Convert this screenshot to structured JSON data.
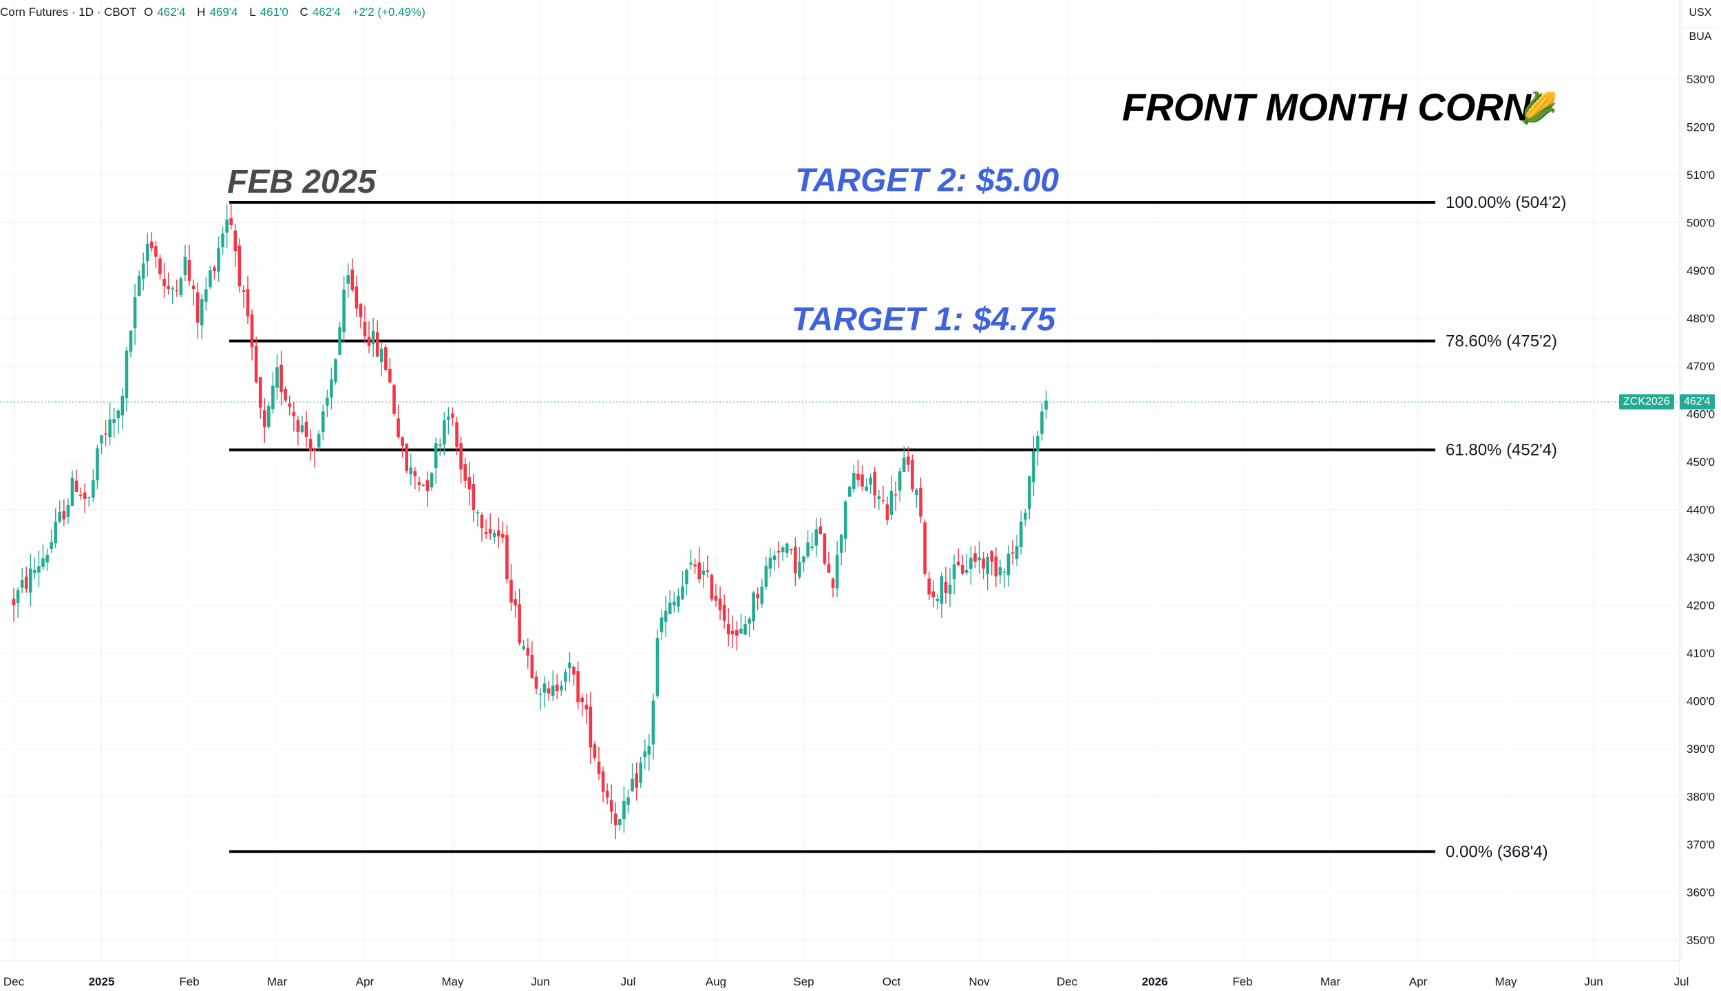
{
  "header": {
    "symbol_title": "Corn Futures · 1D · CBOT",
    "open_label": "O",
    "open_value": "462'4",
    "high_label": "H",
    "high_value": "469'4",
    "low_label": "L",
    "low_value": "461'0",
    "close_label": "C",
    "close_value": "462'4",
    "change": "+2'2 (+0.49%)"
  },
  "price_scale": {
    "units": "USX",
    "measure": "BUA",
    "ticker_tag": "ZCK2026",
    "last_price_label": "462'4"
  },
  "annotations": {
    "title": "FRONT MONTH CORN",
    "title_emoji": "🌽",
    "peak_label": "FEB 2025",
    "target2": "TARGET 2: $5.00",
    "target1": "TARGET 1: $4.75"
  },
  "colors": {
    "up": "#22ab94",
    "down": "#f23645",
    "target_text": "#3e63dd",
    "peak_text": "#4a4a4a",
    "fib_line": "#000000",
    "grid": "#f0f3fa"
  },
  "chart_data": {
    "type": "candlestick",
    "title": "FRONT MONTH CORN",
    "ylim": [
      345,
      540
    ],
    "y_ticks": [
      {
        "v": 350,
        "label": "350'0"
      },
      {
        "v": 360,
        "label": "360'0"
      },
      {
        "v": 370,
        "label": "370'0"
      },
      {
        "v": 380,
        "label": "380'0"
      },
      {
        "v": 390,
        "label": "390'0"
      },
      {
        "v": 400,
        "label": "400'0"
      },
      {
        "v": 410,
        "label": "410'0"
      },
      {
        "v": 420,
        "label": "420'0"
      },
      {
        "v": 430,
        "label": "430'0"
      },
      {
        "v": 440,
        "label": "440'0"
      },
      {
        "v": 450,
        "label": "450'0"
      },
      {
        "v": 460,
        "label": "460'0"
      },
      {
        "v": 470,
        "label": "470'0"
      },
      {
        "v": 480,
        "label": "480'0"
      },
      {
        "v": 490,
        "label": "490'0"
      },
      {
        "v": 500,
        "label": "500'0"
      },
      {
        "v": 510,
        "label": "510'0"
      },
      {
        "v": 520,
        "label": "520'0"
      },
      {
        "v": 530,
        "label": "530'0"
      }
    ],
    "x_ticks": [
      {
        "label": "Dec",
        "bold": false
      },
      {
        "label": "2025",
        "bold": true
      },
      {
        "label": "Feb",
        "bold": false
      },
      {
        "label": "Mar",
        "bold": false
      },
      {
        "label": "Apr",
        "bold": false
      },
      {
        "label": "May",
        "bold": false
      },
      {
        "label": "Jun",
        "bold": false
      },
      {
        "label": "Jul",
        "bold": false
      },
      {
        "label": "Aug",
        "bold": false
      },
      {
        "label": "Sep",
        "bold": false
      },
      {
        "label": "Oct",
        "bold": false
      },
      {
        "label": "Nov",
        "bold": false
      },
      {
        "label": "Dec",
        "bold": false
      },
      {
        "label": "2026",
        "bold": true
      },
      {
        "label": "Feb",
        "bold": false
      },
      {
        "label": "Mar",
        "bold": false
      },
      {
        "label": "Apr",
        "bold": false
      },
      {
        "label": "May",
        "bold": false
      },
      {
        "label": "Jun",
        "bold": false
      },
      {
        "label": "Jul",
        "bold": false
      }
    ],
    "fib_levels": [
      {
        "level": 504.25,
        "label": "100.00% (504'2)"
      },
      {
        "level": 475.25,
        "label": "78.60% (475'2)"
      },
      {
        "level": 452.5,
        "label": "61.80% (452'4)"
      },
      {
        "level": 368.5,
        "label": "0.00% (368'4)"
      }
    ],
    "last_price": 462.5,
    "anchors": [
      {
        "month": 0.0,
        "price": 421
      },
      {
        "month": 0.4,
        "price": 432
      },
      {
        "month": 0.7,
        "price": 446
      },
      {
        "month": 0.85,
        "price": 441
      },
      {
        "month": 1.0,
        "price": 455
      },
      {
        "month": 1.2,
        "price": 460
      },
      {
        "month": 1.35,
        "price": 480
      },
      {
        "month": 1.55,
        "price": 498
      },
      {
        "month": 1.75,
        "price": 484
      },
      {
        "month": 1.95,
        "price": 492
      },
      {
        "month": 2.1,
        "price": 480
      },
      {
        "month": 2.45,
        "price": 503
      },
      {
        "month": 2.65,
        "price": 480
      },
      {
        "month": 2.85,
        "price": 455
      },
      {
        "month": 3.0,
        "price": 468
      },
      {
        "month": 3.25,
        "price": 458
      },
      {
        "month": 3.45,
        "price": 452
      },
      {
        "month": 3.6,
        "price": 465
      },
      {
        "month": 3.8,
        "price": 488
      },
      {
        "month": 4.0,
        "price": 478
      },
      {
        "month": 4.25,
        "price": 470
      },
      {
        "month": 4.45,
        "price": 449
      },
      {
        "month": 4.7,
        "price": 445
      },
      {
        "month": 4.95,
        "price": 462
      },
      {
        "month": 5.1,
        "price": 448
      },
      {
        "month": 5.3,
        "price": 439
      },
      {
        "month": 5.55,
        "price": 434
      },
      {
        "month": 5.75,
        "price": 415
      },
      {
        "month": 5.95,
        "price": 405
      },
      {
        "month": 6.1,
        "price": 400
      },
      {
        "month": 6.3,
        "price": 408
      },
      {
        "month": 6.5,
        "price": 398
      },
      {
        "month": 6.7,
        "price": 383
      },
      {
        "month": 6.9,
        "price": 374
      },
      {
        "month": 7.1,
        "price": 384
      },
      {
        "month": 7.25,
        "price": 392
      },
      {
        "month": 7.35,
        "price": 416
      },
      {
        "month": 7.55,
        "price": 421
      },
      {
        "month": 7.75,
        "price": 429
      },
      {
        "month": 8.0,
        "price": 422
      },
      {
        "month": 8.25,
        "price": 412
      },
      {
        "month": 8.45,
        "price": 422
      },
      {
        "month": 8.7,
        "price": 433
      },
      {
        "month": 8.95,
        "price": 428
      },
      {
        "month": 9.15,
        "price": 435
      },
      {
        "month": 9.35,
        "price": 425
      },
      {
        "month": 9.5,
        "price": 446
      },
      {
        "month": 9.75,
        "price": 445
      },
      {
        "month": 9.95,
        "price": 440
      },
      {
        "month": 10.15,
        "price": 450
      },
      {
        "month": 10.3,
        "price": 442
      },
      {
        "month": 10.42,
        "price": 422
      },
      {
        "month": 10.7,
        "price": 426
      },
      {
        "month": 10.95,
        "price": 430
      },
      {
        "month": 11.2,
        "price": 428
      },
      {
        "month": 11.45,
        "price": 432
      },
      {
        "month": 11.55,
        "price": 445
      },
      {
        "month": 11.7,
        "price": 460
      },
      {
        "month": 11.8,
        "price": 462.5
      }
    ]
  }
}
